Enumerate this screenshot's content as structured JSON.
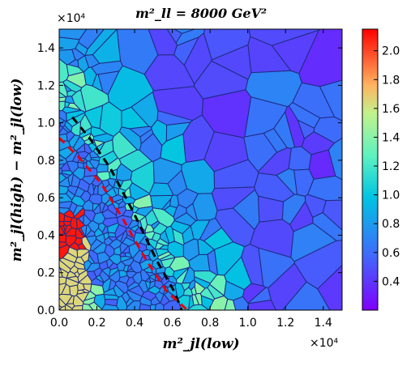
{
  "chart_data": {
    "type": "heatmap",
    "subtype": "voronoi-tessellation",
    "title": "m²_ll = 8000 GeV²",
    "xlabel": "m²_jl(low)",
    "ylabel": "m²_jl(high) − m²_jl(low)",
    "x_multiplier": "×10⁴",
    "y_multiplier": "×10⁴",
    "xlim": [
      0,
      15000
    ],
    "ylim": [
      0,
      15000
    ],
    "x_ticks": [
      "0.0",
      "0.2",
      "0.4",
      "0.6",
      "0.8",
      "1.0",
      "1.2",
      "1.4"
    ],
    "y_ticks": [
      "0.0",
      "0.2",
      "0.4",
      "0.6",
      "0.8",
      "1.0",
      "1.2",
      "1.4"
    ],
    "colorbar": {
      "range": [
        0.2,
        2.15
      ],
      "colormap": "rainbow",
      "ticks": [
        "0.4",
        "0.6",
        "0.8",
        "1.0",
        "1.2",
        "1.4",
        "1.6",
        "1.8",
        "2.0"
      ]
    },
    "boundary_curves": [
      {
        "style": "black-dashed",
        "points": [
          [
            700,
            10300
          ],
          [
            1600,
            9200
          ],
          [
            2700,
            7600
          ],
          [
            3900,
            5300
          ],
          [
            5200,
            2600
          ],
          [
            6100,
            1000
          ],
          [
            6500,
            0
          ]
        ]
      },
      {
        "style": "red-dashed",
        "points": [
          [
            0,
            9200
          ],
          [
            1000,
            8200
          ],
          [
            2200,
            6800
          ],
          [
            3300,
            5000
          ],
          [
            4600,
            2700
          ],
          [
            5700,
            1000
          ],
          [
            6800,
            0
          ]
        ]
      }
    ]
  }
}
